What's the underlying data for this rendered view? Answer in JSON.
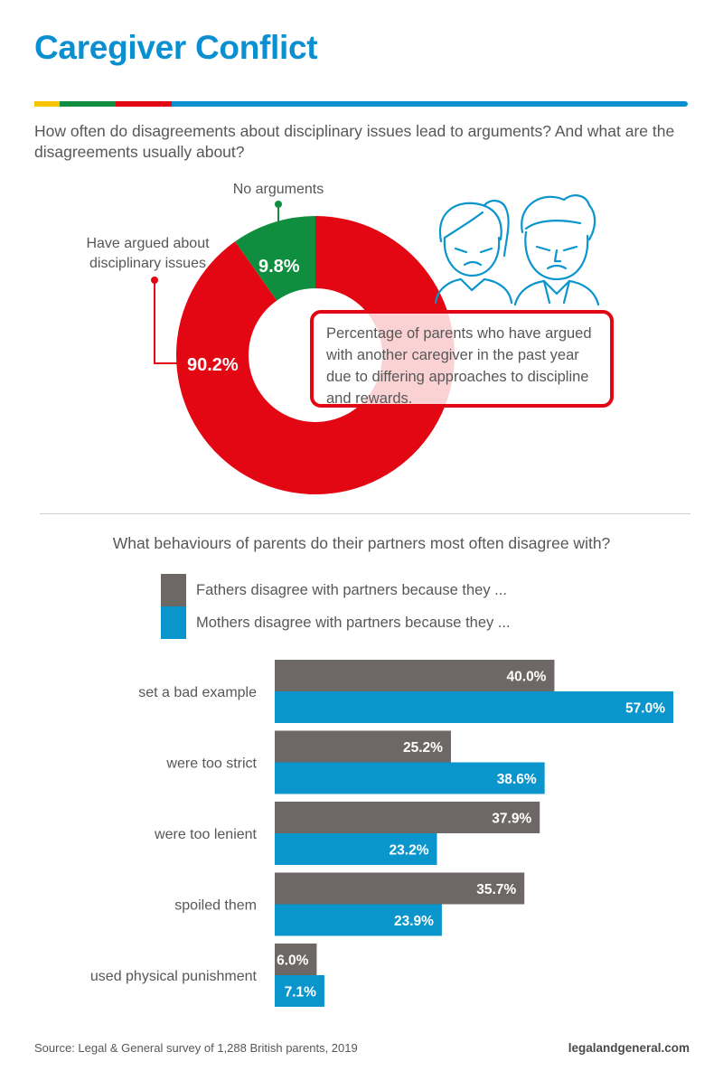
{
  "title": "Caregiver Conflict",
  "question": "How often do disagreements about disciplinary issues lead to arguments? And what are the disagreements usually about?",
  "colors": {
    "title": "#0a8fd0",
    "red": "#e30613",
    "green": "#0e8e3e",
    "yellow": "#f7c600",
    "blue": "#0a8fd0",
    "mothers": "#0a95cd",
    "fathers": "#6d6865",
    "text": "#575757"
  },
  "donut": {
    "callout": "Percentage of parents who have argued with another caregiver in the past year due to differing approaches to discipline and rewards."
  },
  "question2": "What behaviours of parents do their partners most often disagree with?",
  "source": "Source: Legal & General survey of 1,288 British parents, 2019",
  "site": "legalandgeneral.com",
  "chart_data": [
    {
      "type": "pie",
      "donut": true,
      "slices": [
        {
          "label": "No arguments",
          "value": 9.8,
          "value_label": "9.8%",
          "color": "#0e8e3e"
        },
        {
          "label": "Have argued about disciplinary issues",
          "value": 90.2,
          "value_label": "90.2%",
          "color": "#e30613"
        }
      ]
    },
    {
      "type": "bar",
      "orientation": "horizontal",
      "categories": [
        "set a bad example",
        "were too strict",
        "were too lenient",
        "spoiled them",
        "used physical punishment"
      ],
      "series": [
        {
          "name": "Fathers disagree with partners because they ...",
          "values": [
            40.0,
            25.2,
            37.9,
            35.7,
            6.0
          ],
          "labels": [
            "40.0%",
            "25.2%",
            "37.9%",
            "35.7%",
            "6.0%"
          ],
          "color": "#6d6865"
        },
        {
          "name": "Mothers disagree with partners because they ...",
          "values": [
            57.0,
            38.6,
            23.2,
            23.9,
            7.1
          ],
          "labels": [
            "57.0%",
            "38.6%",
            "23.2%",
            "23.9%",
            "7.1%"
          ],
          "color": "#0a95cd"
        }
      ],
      "xlim": [
        0,
        57
      ],
      "grid": false,
      "legend": "top"
    }
  ]
}
